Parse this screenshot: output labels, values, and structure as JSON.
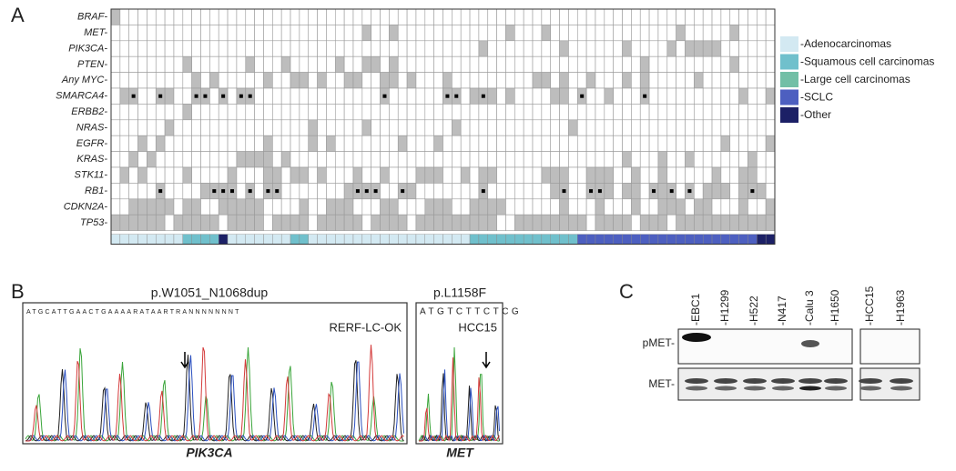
{
  "panel_a": {
    "label": "A",
    "genes": [
      "BRAF-",
      "MET-",
      "PIK3CA-",
      "PTEN-",
      "Any MYC-",
      "SMARCA4-",
      "ERBB2-",
      "NRAS-",
      "EGFR-",
      "KRAS-",
      "STK11-",
      "RB1-",
      "CDKN2A-",
      "TP53-"
    ],
    "legend": [
      {
        "name": "-Adenocarcinomas",
        "color": "#d3e9f2"
      },
      {
        "name": "-Squamous cell carcinomas",
        "color": "#70c0cc"
      },
      {
        "name": "-Large cell carcinomas",
        "color": "#72bfa6"
      },
      {
        "name": "-SCLC",
        "color": "#4d5fc0"
      },
      {
        "name": "-Other",
        "color": "#1c2066"
      }
    ]
  },
  "panel_b": {
    "label": "B",
    "traces": [
      {
        "title": "p.W1051_N1068dup",
        "sample": "RERF-LC-OK",
        "gene": "PIK3CA",
        "sequence": "ATGCATTGAACTGAAAARATAARTRANNNNNNNT"
      },
      {
        "title": "p.L1158F",
        "sample": "HCC15",
        "gene": "MET",
        "sequence": "ATGTCTTCTCG"
      }
    ]
  },
  "panel_c": {
    "label": "C",
    "cell_lines": [
      "-EBC1",
      "-H1299",
      "-H522",
      "-N417",
      "-Calu 3",
      "-H1650",
      "-HCC15",
      "-H1963"
    ],
    "rows": [
      "pMET-",
      "MET-"
    ]
  }
}
